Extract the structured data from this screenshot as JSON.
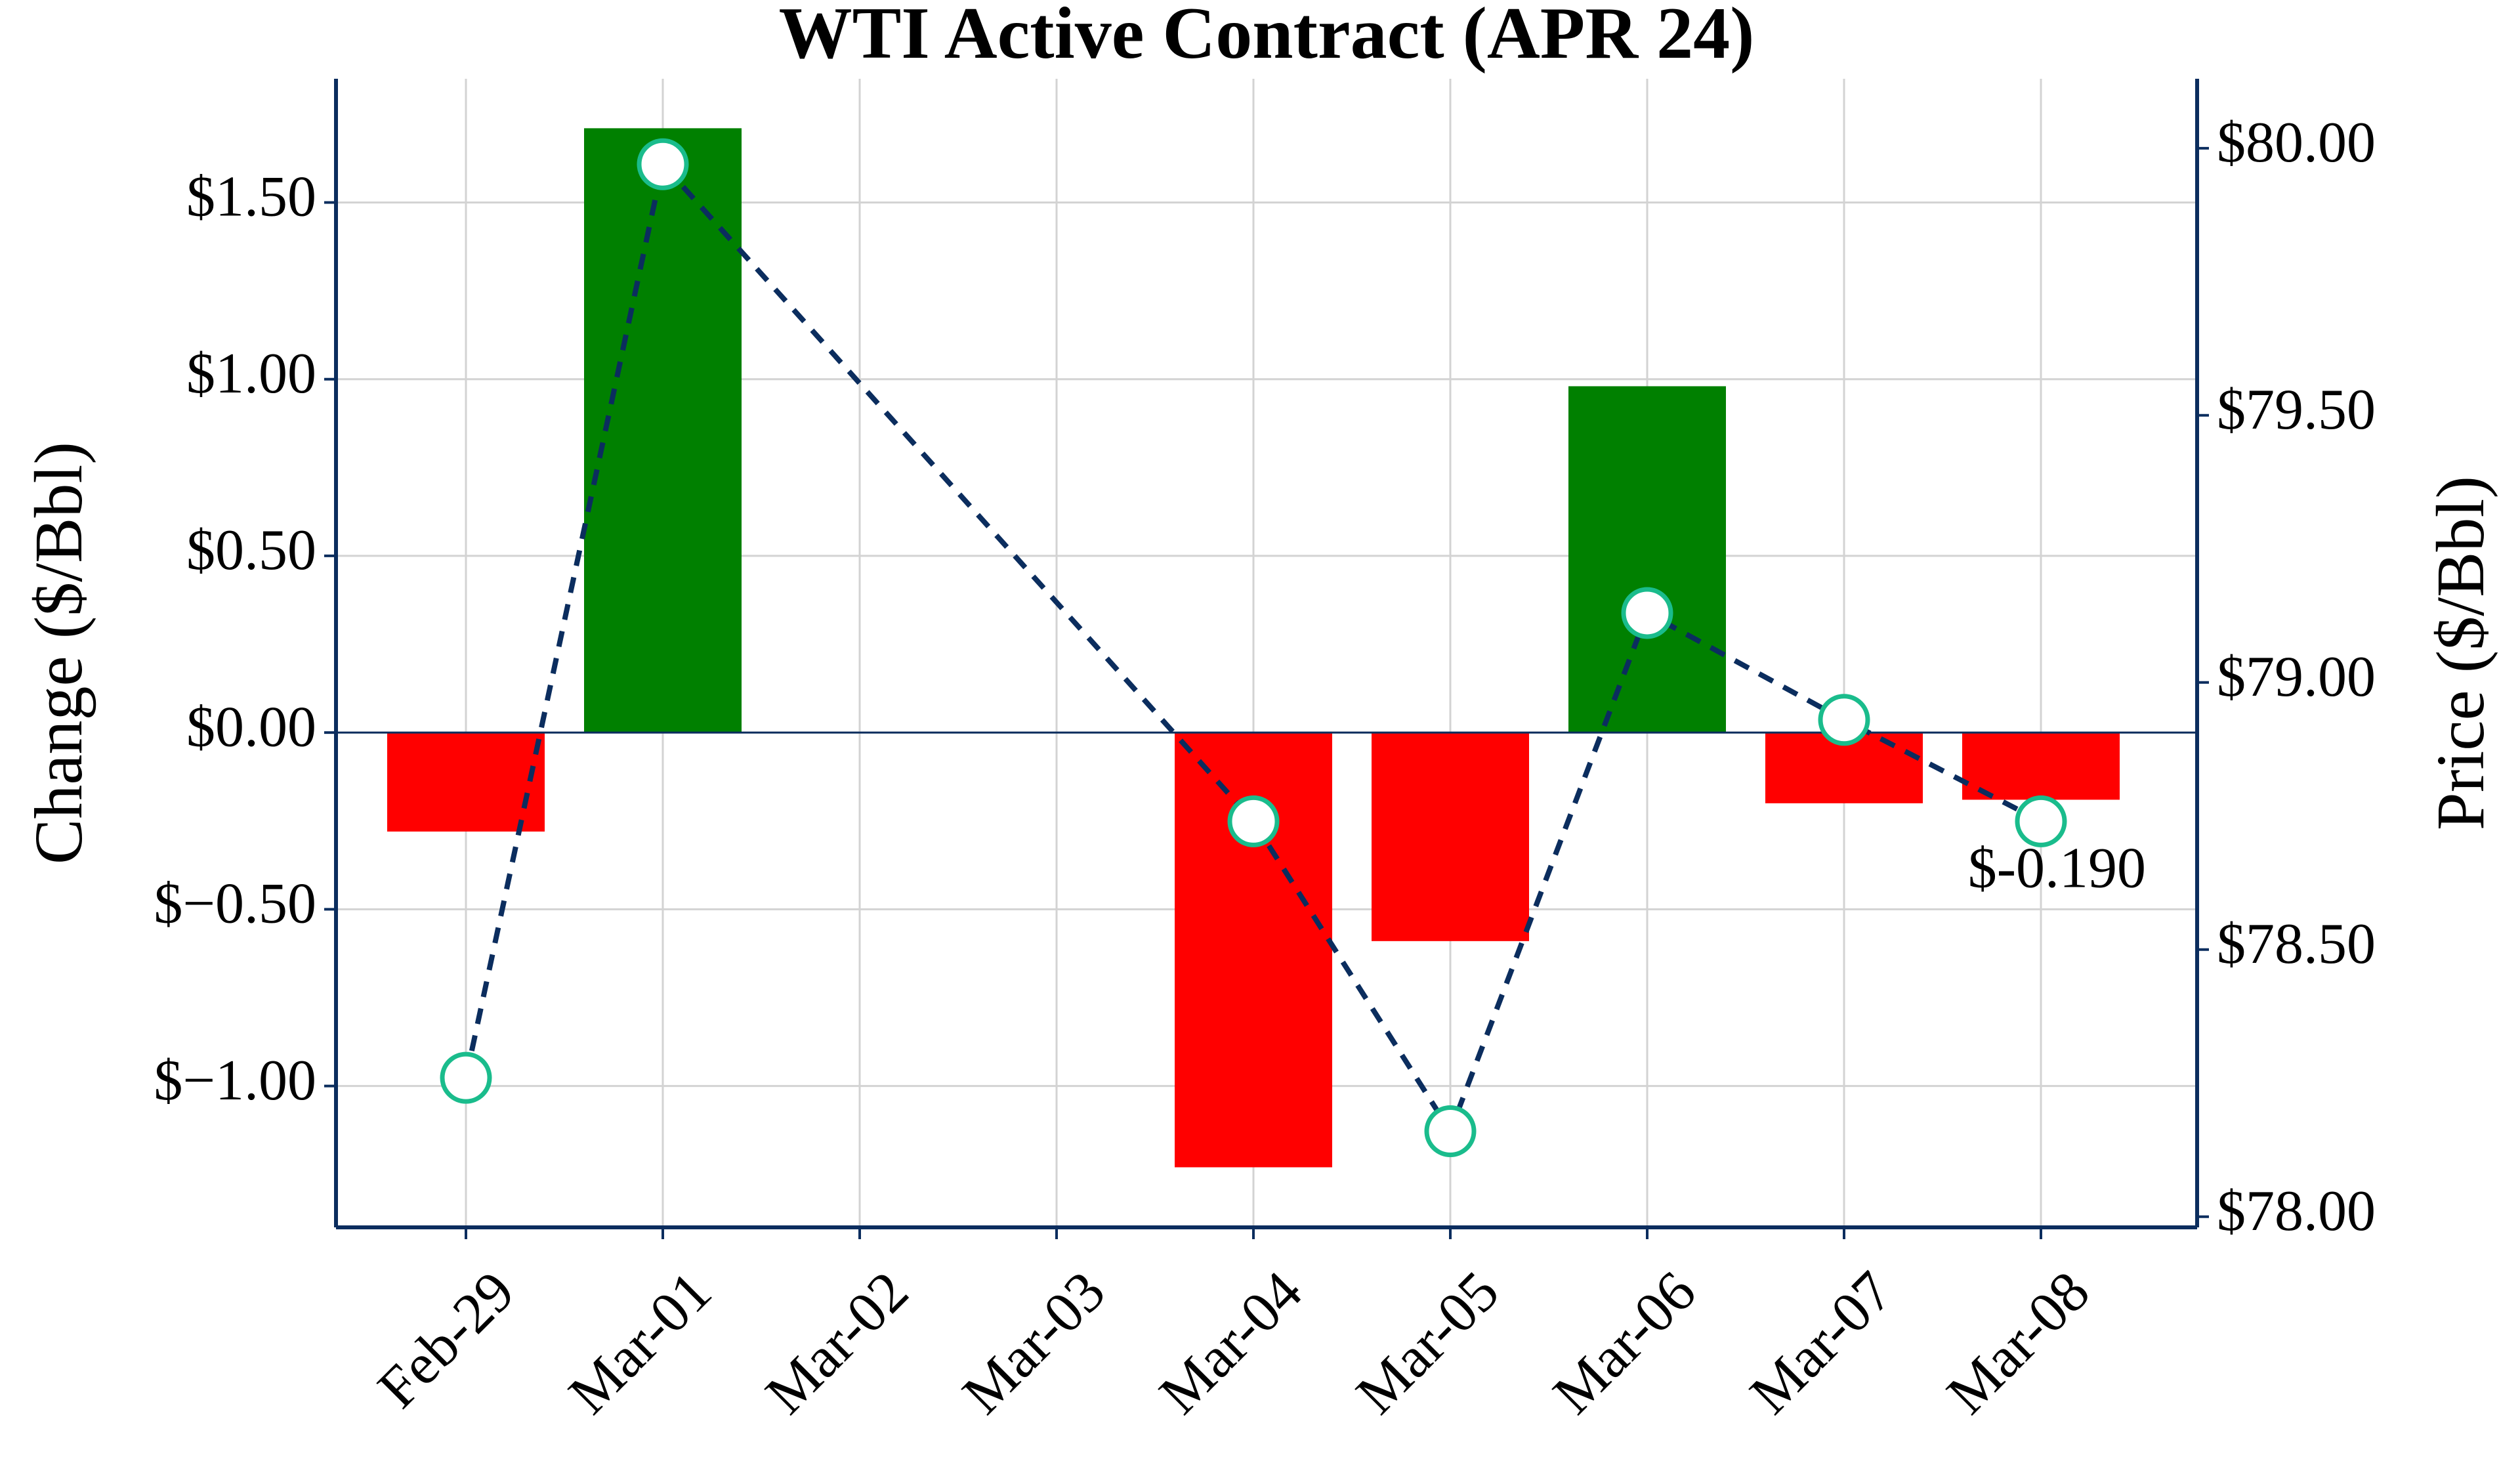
{
  "chart_data": {
    "type": "bar",
    "title": "WTI Active Contract (APR 24)",
    "xlabel": "",
    "ylabel": "Change ($/Bbl)",
    "y2label": "Price ($/Bbl)",
    "categories": [
      "Feb-29",
      "Mar-01",
      "Mar-02",
      "Mar-03",
      "Mar-04",
      "Mar-05",
      "Mar-06",
      "Mar-07",
      "Mar-08"
    ],
    "series": [
      {
        "name": "Change",
        "type": "bar",
        "axis": "left",
        "values": [
          -0.28,
          1.71,
          null,
          null,
          -1.23,
          -0.59,
          0.98,
          -0.2,
          -0.19
        ]
      },
      {
        "name": "Price",
        "type": "line",
        "axis": "right",
        "values": [
          78.26,
          79.97,
          null,
          null,
          78.74,
          78.16,
          79.13,
          78.93,
          78.74
        ]
      }
    ],
    "ylim": [
      -1.4,
      1.85
    ],
    "y2lim": [
      77.98,
      80.13
    ],
    "yticks": [
      -1.0,
      -0.5,
      0.0,
      0.5,
      1.0,
      1.5
    ],
    "ytick_labels": [
      "$−1.00",
      "$−0.50",
      "$0.00",
      "$0.50",
      "$1.00",
      "$1.50"
    ],
    "y2ticks": [
      78.0,
      78.5,
      79.0,
      79.5,
      80.0
    ],
    "y2tick_labels": [
      "$78.00",
      "$78.50",
      "$79.00",
      "$79.50",
      "$80.00"
    ],
    "annotation": {
      "category": "Mar-08",
      "text": "$-0.190"
    },
    "grid": true,
    "legend": "none",
    "colors": {
      "positive": "#008000",
      "negative": "#ff0000",
      "line": "#0b2d5e",
      "marker_edge": "#1abc8c",
      "marker_fill": "#ffffff",
      "zero_line": "#0b2d5e",
      "spine": "#0b2d5e",
      "grid": "#d3d3d3"
    }
  }
}
